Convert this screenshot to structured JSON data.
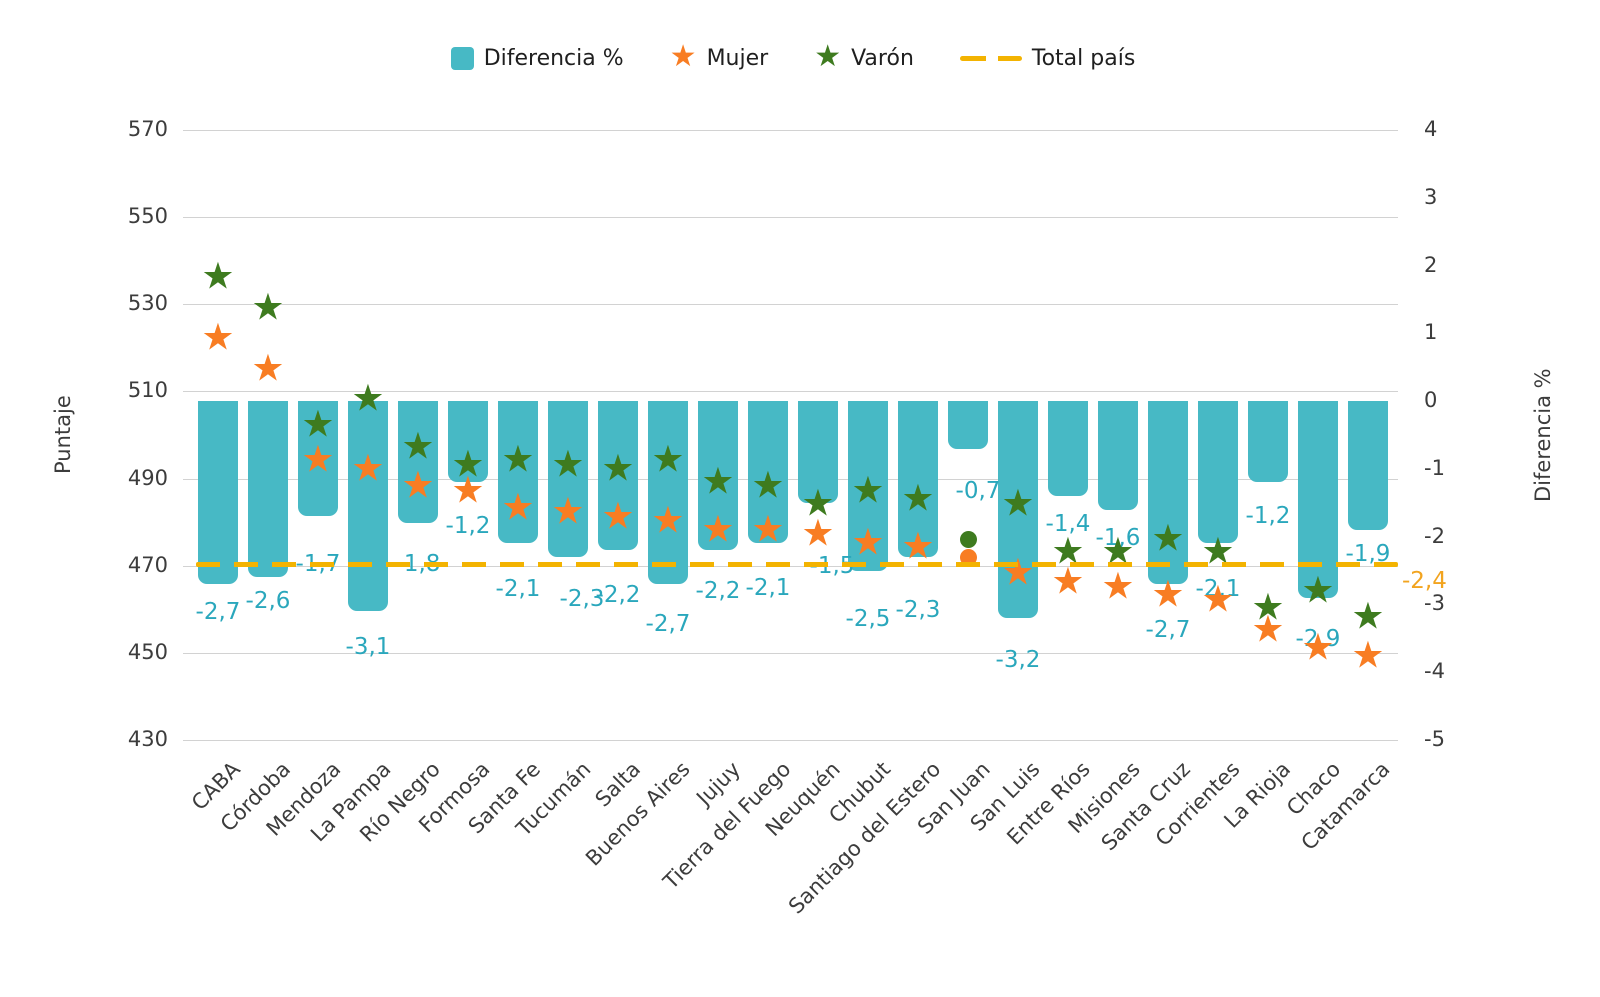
{
  "chart_data": {
    "type": "bar",
    "categories": [
      "CABA",
      "Córdoba",
      "Mendoza",
      "La Pampa",
      "Río Negro",
      "Formosa",
      "Santa Fe",
      "Tucumán",
      "Salta",
      "Buenos Aires",
      "Jujuy",
      "Tierra del Fuego",
      "Neuquén",
      "Chubut",
      "Santiago del Estero",
      "San Juan",
      "San Luis",
      "Entre Ríos",
      "Misiones",
      "Santa Cruz",
      "Corrientes",
      "La Rioja",
      "Chaco",
      "Catamarca"
    ],
    "series": [
      {
        "name": "Diferencia %",
        "type": "bar",
        "yaxis": "right",
        "color": "#47B9C5",
        "label_color": "#2AA7BC",
        "values": [
          -2.7,
          -2.6,
          -1.7,
          -3.1,
          -1.8,
          -1.2,
          -2.1,
          -2.3,
          -2.2,
          -2.7,
          -2.2,
          -2.1,
          -1.5,
          -2.5,
          -2.3,
          -0.7,
          -3.2,
          -1.4,
          -1.6,
          -2.7,
          -2.1,
          -1.2,
          -2.9,
          -1.9
        ],
        "labels": [
          "-2,7",
          "-2,6",
          "-1,7",
          "-3,1",
          "-1,8",
          "-1,2",
          "-2,1",
          "-2,3",
          "-2,2",
          "-2,7",
          "-2,2",
          "-2,1",
          "-1,5",
          "-2,5",
          "-2,3",
          "-0,7",
          "-3,2",
          "-1,4",
          "-1,6",
          "-2,7",
          "-2,1",
          "-1,2",
          "-2,9",
          "-1,9"
        ]
      },
      {
        "name": "Mujer",
        "type": "scatter",
        "marker": "star",
        "yaxis": "left",
        "color": "#F87D23",
        "values": [
          522,
          515,
          494,
          492,
          488,
          487,
          483,
          482,
          481,
          480,
          478,
          478,
          477,
          475,
          474,
          472,
          468,
          466,
          465,
          463,
          462,
          455,
          451,
          449
        ],
        "marker_overrides": {
          "15": "circle"
        }
      },
      {
        "name": "Varón",
        "type": "scatter",
        "marker": "star",
        "yaxis": "left",
        "color": "#3E7B1F",
        "values": [
          536,
          529,
          502,
          508,
          497,
          493,
          494,
          493,
          492,
          494,
          489,
          488,
          484,
          487,
          485,
          476,
          484,
          473,
          473,
          476,
          473,
          460,
          464,
          458
        ],
        "marker_overrides": {
          "15": "circle"
        }
      },
      {
        "name": "Total país",
        "type": "line",
        "style": "dashed",
        "yaxis": "right",
        "value": -2.4,
        "label": "-2,4",
        "color": "#F3B301",
        "label_color": "#F2A41F"
      }
    ],
    "left_axis": {
      "title": "Puntaje",
      "ticks": [
        "570",
        "550",
        "530",
        "510",
        "490",
        "470",
        "450",
        "430"
      ],
      "range": [
        430,
        570
      ]
    },
    "right_axis": {
      "title": "Diferencia %",
      "ticks": [
        "4",
        "3",
        "2",
        "1",
        "0",
        "-1",
        "-2",
        "-3",
        "-4",
        "-5"
      ],
      "range": [
        -5,
        4
      ]
    },
    "legend": {
      "position": "top-center",
      "items": [
        {
          "label": "Diferencia %",
          "marker": "square",
          "color": "#47B9C5"
        },
        {
          "label": "Mujer",
          "marker": "star",
          "color": "#F87D23"
        },
        {
          "label": "Varón",
          "marker": "star",
          "color": "#3E7B1F"
        },
        {
          "label": "Total país",
          "marker": "dash",
          "color": "#F3B301"
        }
      ]
    },
    "layout_hints": {
      "grid": true,
      "grid_color": "#d2d2d2",
      "background": "#ffffff",
      "bar_label_dy": [
        28,
        24,
        48,
        36,
        41,
        44,
        46,
        42,
        45,
        40,
        41,
        45,
        63,
        48,
        53,
        42,
        42,
        28,
        28,
        46,
        46,
        34,
        41,
        24
      ],
      "bar_label_dx": [
        0,
        0,
        0,
        0,
        0,
        0,
        0,
        14,
        0,
        0,
        0,
        0,
        14,
        0,
        0,
        10,
        0,
        0,
        0,
        0,
        0,
        0,
        0,
        0
      ]
    }
  }
}
